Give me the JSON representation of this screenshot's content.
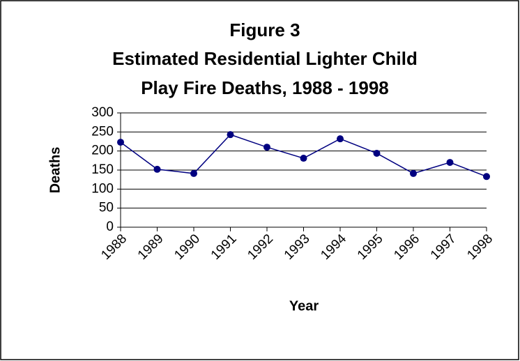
{
  "chart_data": {
    "type": "line",
    "title": [
      "Figure 3",
      "Estimated Residential Lighter Child",
      "Play Fire Deaths, 1988 - 1998"
    ],
    "x_label": "Year",
    "y_label": "Deaths",
    "categories": [
      "1988",
      "1989",
      "1990",
      "1991",
      "1992",
      "1993",
      "1994",
      "1995",
      "1996",
      "1997",
      "1998"
    ],
    "series": [
      {
        "name": "Deaths",
        "color": "#000080",
        "values": [
          223,
          152,
          141,
          243,
          210,
          181,
          232,
          194,
          141,
          170,
          133
        ]
      }
    ],
    "ylim": [
      0,
      300
    ],
    "yticks": [
      0,
      50,
      100,
      150,
      200,
      250,
      300
    ],
    "grid": true
  }
}
